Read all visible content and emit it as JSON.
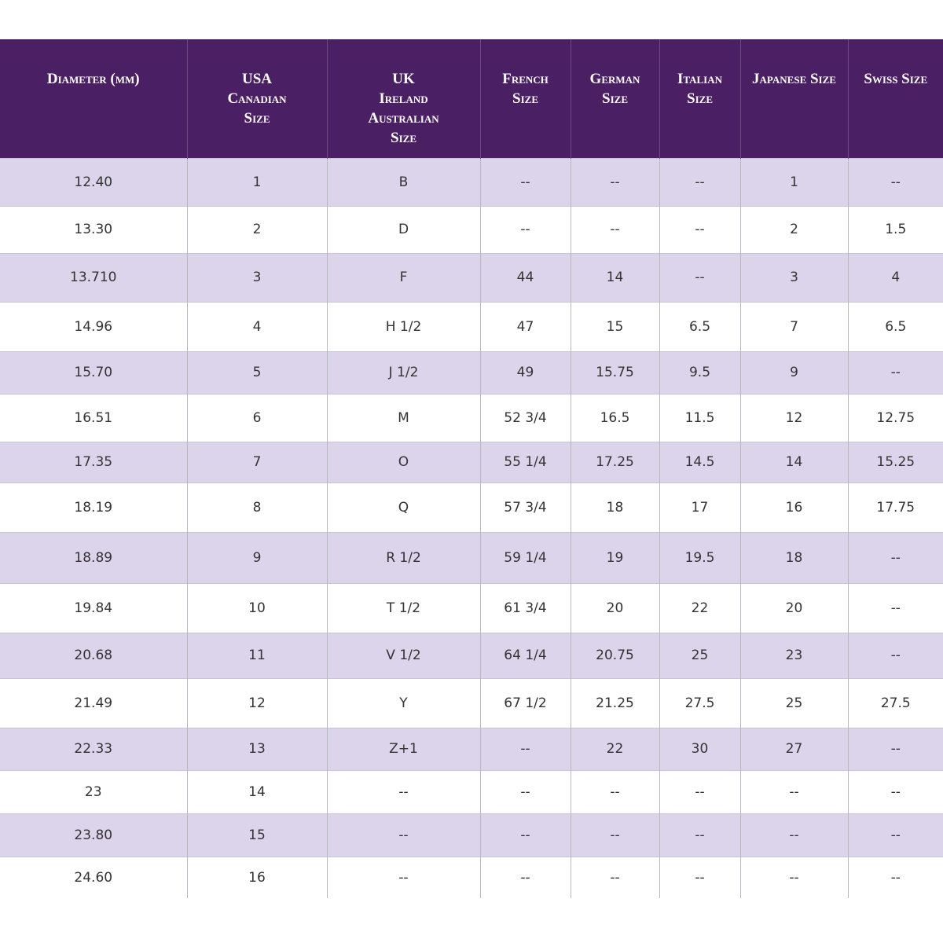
{
  "table": {
    "headers": [
      [
        "Diameter (mm)"
      ],
      [
        "USA",
        "Canadian",
        "Size"
      ],
      [
        "UK",
        "Ireland",
        "Australian",
        "Size"
      ],
      [
        "French",
        "Size"
      ],
      [
        "German",
        "Size"
      ],
      [
        "Italian",
        "Size"
      ],
      [
        "Japanese Size"
      ],
      [
        "Swiss Size"
      ]
    ],
    "rows": [
      [
        "12.40",
        "1",
        "B",
        "--",
        "--",
        "--",
        "1",
        "--"
      ],
      [
        "13.30",
        "2",
        "D",
        "--",
        "--",
        "--",
        "2",
        "1.5"
      ],
      [
        "13.710",
        "3",
        "F",
        "44",
        "14",
        "--",
        "3",
        "4"
      ],
      [
        "14.96",
        "4",
        "H 1/2",
        "47",
        "15",
        "6.5",
        "7",
        "6.5"
      ],
      [
        "15.70",
        "5",
        "J 1/2",
        "49",
        "15.75",
        "9.5",
        "9",
        "--"
      ],
      [
        "16.51",
        "6",
        "M",
        "52 3/4",
        "16.5",
        "11.5",
        "12",
        "12.75"
      ],
      [
        "17.35",
        "7",
        "O",
        "55 1/4",
        "17.25",
        "14.5",
        "14",
        "15.25"
      ],
      [
        "18.19",
        "8",
        "Q",
        "57 3/4",
        "18",
        "17",
        "16",
        "17.75"
      ],
      [
        "18.89",
        "9",
        "R 1/2",
        "59 1/4",
        "19",
        "19.5",
        "18",
        "--"
      ],
      [
        "19.84",
        "10",
        "T 1/2",
        "61 3/4",
        "20",
        "22",
        "20",
        "--"
      ],
      [
        "20.68",
        "11",
        "V 1/2",
        "64 1/4",
        "20.75",
        "25",
        "23",
        "--"
      ],
      [
        "21.49",
        "12",
        "Y",
        "67 1/2",
        "21.25",
        "27.5",
        "25",
        "27.5"
      ],
      [
        "22.33",
        "13",
        "Z+1",
        "--",
        "22",
        "30",
        "27",
        "--"
      ],
      [
        "23",
        "14",
        "--",
        "--",
        "--",
        "--",
        "--",
        "--"
      ],
      [
        "23.80",
        "15",
        "--",
        "--",
        "--",
        "--",
        "--",
        "--"
      ],
      [
        "24.60",
        "16",
        "--",
        "--",
        "--",
        "--",
        "--",
        "--"
      ]
    ]
  }
}
